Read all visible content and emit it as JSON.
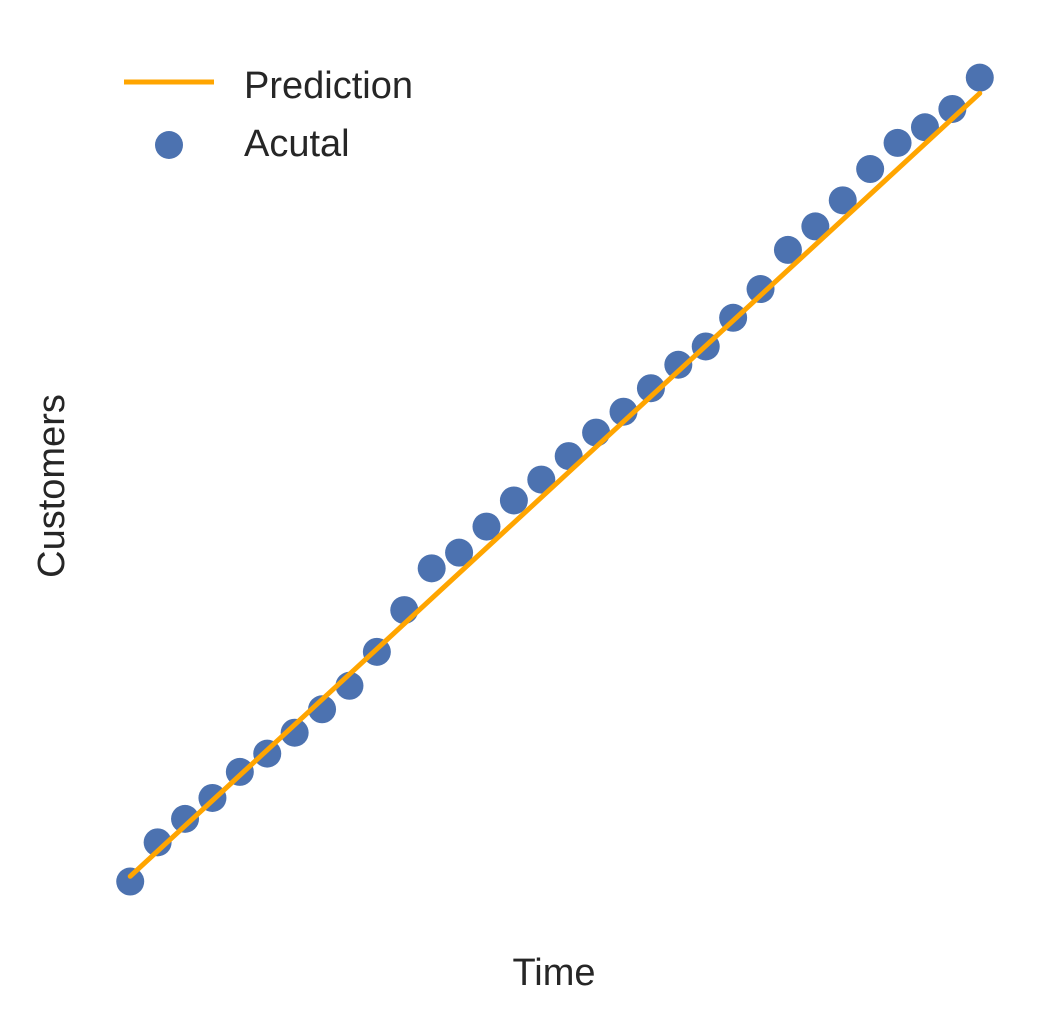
{
  "chart_data": {
    "type": "scatter",
    "title": "",
    "xlabel": "Time",
    "ylabel": "Customers",
    "grid": false,
    "axes_visible": false,
    "legend_position": "top-left",
    "colors": {
      "prediction": "#FFA500",
      "actual": "#4C72B0",
      "text": "#262626",
      "background": "#FFFFFF"
    },
    "series": [
      {
        "name": "Prediction",
        "kind": "line",
        "x": [
          0,
          31
        ],
        "y": [
          -0.2,
          29.8
        ]
      },
      {
        "name": "Acutal",
        "kind": "scatter",
        "x": [
          0,
          1,
          2,
          3,
          4,
          5,
          6,
          7,
          8,
          9,
          10,
          11,
          12,
          13,
          14,
          15,
          16,
          17,
          18,
          19,
          20,
          21,
          22,
          23,
          24,
          25,
          26,
          27,
          28,
          29,
          30,
          31
        ],
        "y": [
          -0.4,
          1.1,
          2.0,
          2.8,
          3.8,
          4.5,
          5.3,
          6.2,
          7.1,
          8.4,
          10.0,
          11.6,
          12.2,
          13.2,
          14.2,
          15.0,
          15.9,
          16.8,
          17.6,
          18.5,
          19.4,
          20.1,
          21.2,
          22.3,
          23.8,
          24.7,
          25.7,
          26.9,
          27.9,
          28.5,
          29.2,
          30.4
        ]
      }
    ],
    "xlim": [
      -0.3,
      31.3
    ],
    "ylim": [
      -1.3,
      31.0
    ]
  }
}
